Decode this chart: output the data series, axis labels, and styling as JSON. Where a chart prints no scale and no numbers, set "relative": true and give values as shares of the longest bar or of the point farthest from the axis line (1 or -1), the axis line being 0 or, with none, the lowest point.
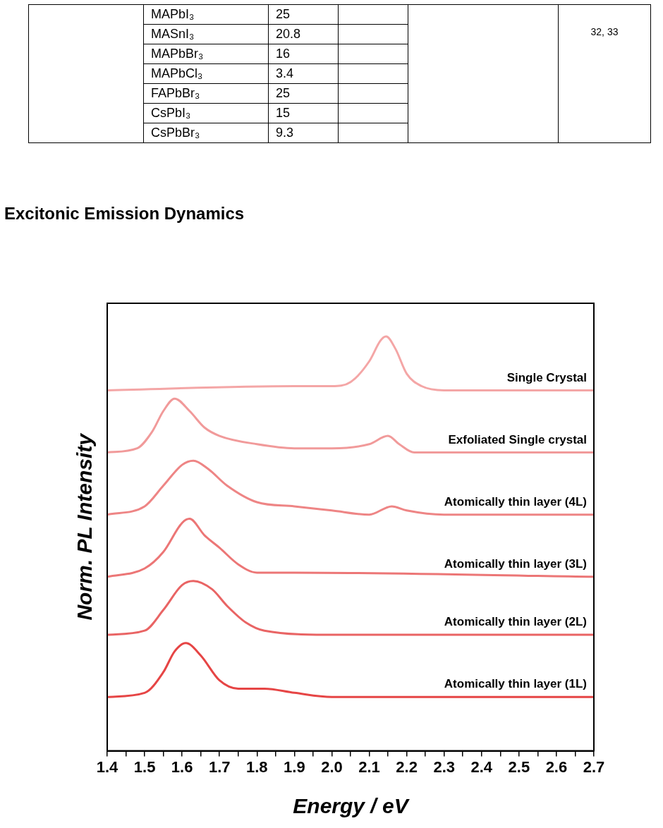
{
  "chart_data": [
    {
      "type": "other",
      "categories": [
        "MAPbI₃",
        "MASnI₃",
        "MAPbBr₃",
        "MAPbCl₃",
        "FAPbBr₃",
        "CsPbI₃",
        "CsPbBr₃"
      ],
      "values": [
        25,
        20.8,
        16,
        3.4,
        25,
        15,
        9.3
      ],
      "data_labels": true,
      "annotations": [
        "32, 33"
      ]
    },
    {
      "type": "line",
      "title": "Excitonic Emission Dynamics",
      "xlabel": "Energy / eV",
      "ylabel": "Norm. PL Intensity",
      "relative": true,
      "grid": false,
      "legend": false,
      "marker": "none",
      "line_style": "solid",
      "xlim": [
        1.4,
        2.7
      ],
      "xticks": [
        1.4,
        {
          "value": 1.45,
          "label": null
        },
        1.5,
        {
          "value": 1.55,
          "label": null
        },
        1.6,
        {
          "value": 1.65,
          "label": null
        },
        1.7,
        {
          "value": 1.75,
          "label": null
        },
        1.8,
        {
          "value": 1.85,
          "label": null
        },
        1.9,
        {
          "value": 1.95,
          "label": null
        },
        {
          "value": 2.0,
          "label": "2.0"
        },
        {
          "value": 2.05,
          "label": null
        },
        2.1,
        {
          "value": 2.15,
          "label": null
        },
        2.2,
        {
          "value": 2.25,
          "label": null
        },
        2.3,
        {
          "value": 2.35,
          "label": null
        },
        2.4,
        {
          "value": 2.45,
          "label": null
        },
        2.5,
        {
          "value": 2.55,
          "label": null
        },
        2.6,
        {
          "value": 2.65,
          "label": null
        },
        2.7
      ],
      "series": [
        {
          "name": "Single Crystal",
          "color": "#f4a6a6",
          "x": [
            1.4,
            1.9,
            2.0,
            2.05,
            2.1,
            2.13,
            2.145,
            2.17,
            2.2,
            2.24,
            2.3,
            2.7
          ],
          "values": [
            0.87,
            0.88,
            0.88,
            0.89,
            0.94,
            0.99,
            1,
            0.97,
            0.91,
            0.88,
            0.87,
            0.87
          ]
        },
        {
          "name": "Exfoliated Single crystal",
          "color": "#f19a9a",
          "x": [
            1.4,
            1.48,
            1.52,
            1.55,
            1.58,
            1.62,
            1.66,
            1.7,
            1.8,
            1.9,
            2.0,
            2.1,
            2.15,
            2.18,
            2.22,
            2.7
          ],
          "values": [
            0.72,
            0.73,
            0.77,
            0.82,
            0.85,
            0.82,
            0.78,
            0.76,
            0.74,
            0.73,
            0.73,
            0.74,
            0.76,
            0.74,
            0.72,
            0.72
          ]
        },
        {
          "name": "Atomically thin layer (4L)",
          "color": "#ee8585",
          "x": [
            1.4,
            1.5,
            1.55,
            1.6,
            1.63,
            1.67,
            1.72,
            1.8,
            1.9,
            2.0,
            2.1,
            2.16,
            2.2,
            2.3,
            2.7
          ],
          "values": [
            0.57,
            0.59,
            0.64,
            0.69,
            0.7,
            0.68,
            0.64,
            0.6,
            0.59,
            0.58,
            0.57,
            0.59,
            0.58,
            0.57,
            0.57
          ]
        },
        {
          "name": "Atomically thin layer (3L)",
          "color": "#ec7676",
          "x": [
            1.4,
            1.5,
            1.55,
            1.6,
            1.62,
            1.66,
            1.7,
            1.75,
            1.8,
            1.9,
            2.7
          ],
          "values": [
            0.42,
            0.44,
            0.48,
            0.55,
            0.56,
            0.52,
            0.49,
            0.45,
            0.43,
            0.43,
            0.42
          ]
        },
        {
          "name": "Atomically thin layer (2L)",
          "color": "#e96464",
          "x": [
            1.4,
            1.5,
            1.55,
            1.6,
            1.63,
            1.68,
            1.72,
            1.77,
            1.82,
            2.0,
            2.16,
            2.7
          ],
          "values": [
            0.28,
            0.29,
            0.34,
            0.4,
            0.41,
            0.39,
            0.35,
            0.31,
            0.29,
            0.28,
            0.28,
            0.28
          ]
        },
        {
          "name": "Atomically thin layer (1L)",
          "color": "#e64545",
          "x": [
            1.4,
            1.5,
            1.55,
            1.58,
            1.61,
            1.65,
            1.7,
            1.75,
            1.82,
            1.9,
            2.0,
            2.7
          ],
          "values": [
            0.13,
            0.14,
            0.19,
            0.24,
            0.26,
            0.23,
            0.17,
            0.15,
            0.15,
            0.14,
            0.13,
            0.13
          ]
        }
      ]
    }
  ]
}
